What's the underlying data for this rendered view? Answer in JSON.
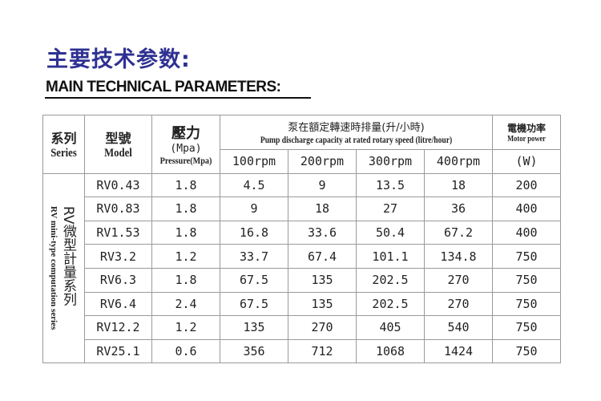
{
  "title_cn": "主要技术参数:",
  "title_en": "MAIN TECHNICAL PARAMETERS:",
  "colors": {
    "title_cn": "#2e3192",
    "border": "#9a9a9a"
  },
  "headers": {
    "series_cn": "系列",
    "series_en": "Series",
    "model_cn": "型號",
    "model_en": "Model",
    "pressure_cn": "壓力",
    "pressure_unit": "(Mpa)",
    "pressure_en": "Pressure(Mpa)",
    "capacity_cn": "泵在額定轉速時排量(升/小時)",
    "capacity_en": "Pump discharge capacity at rated rotary speed (litre/hour)",
    "rpm": [
      "100rpm",
      "200rpm",
      "300rpm",
      "400rpm"
    ],
    "power_cn": "電機功率",
    "power_en": "Motor power",
    "power_unit": "(W)"
  },
  "series": {
    "cn": "RV微型計量系列",
    "en": "RV mini-type computation series"
  },
  "rows": [
    [
      "RV0.43",
      "1.8",
      "4.5",
      "9",
      "13.5",
      "18",
      "200"
    ],
    [
      "RV0.83",
      "1.8",
      "9",
      "18",
      "27",
      "36",
      "400"
    ],
    [
      "RV1.53",
      "1.8",
      "16.8",
      "33.6",
      "50.4",
      "67.2",
      "400"
    ],
    [
      "RV3.2",
      "1.2",
      "33.7",
      "67.4",
      "101.1",
      "134.8",
      "750"
    ],
    [
      "RV6.3",
      "1.8",
      "67.5",
      "135",
      "202.5",
      "270",
      "750"
    ],
    [
      "RV6.4",
      "2.4",
      "67.5",
      "135",
      "202.5",
      "270",
      "750"
    ],
    [
      "RV12.2",
      "1.2",
      "135",
      "270",
      "405",
      "540",
      "750"
    ],
    [
      "RV25.1",
      "0.6",
      "356",
      "712",
      "1068",
      "1424",
      "750"
    ]
  ]
}
